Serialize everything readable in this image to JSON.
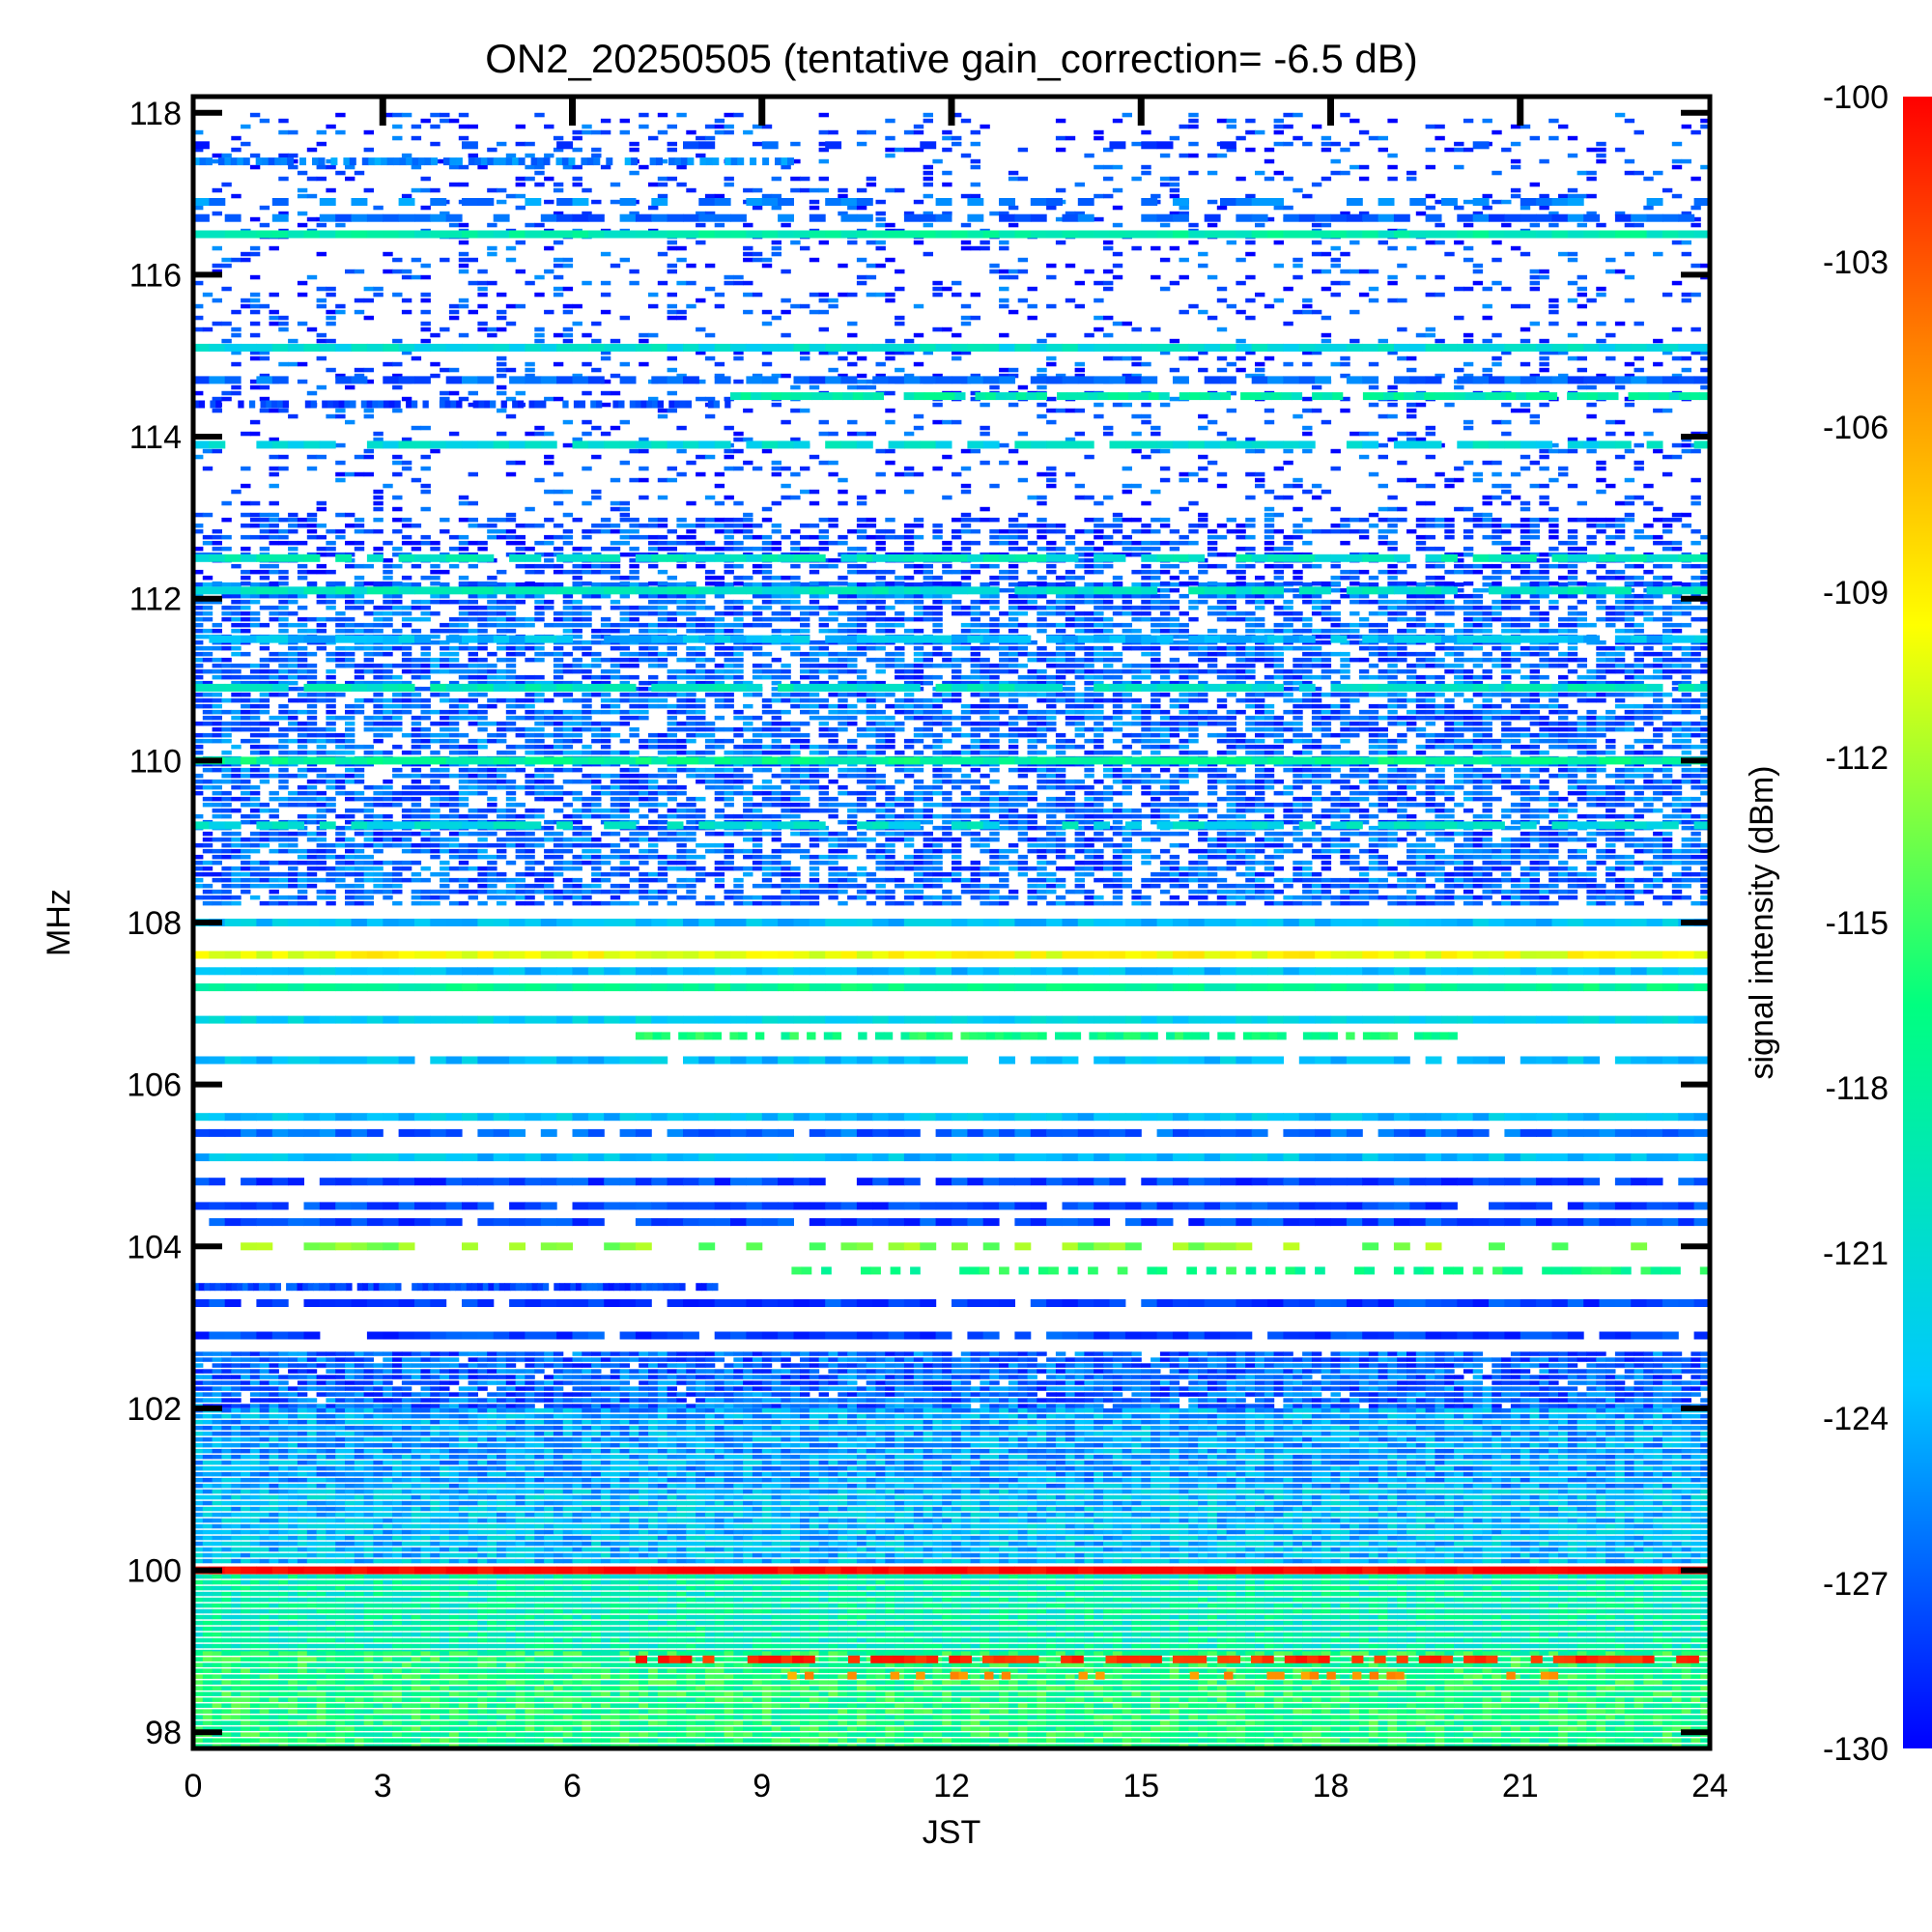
{
  "chart_data": {
    "type": "heatmap",
    "title": "ON2_20250505 (tentative gain_correction= -6.5 dB)",
    "xlabel": "JST",
    "ylabel": "MHz",
    "colorbar_label": "signal intensity (dBm)",
    "xlim": [
      0,
      24
    ],
    "ylim": [
      97.8,
      118.2
    ],
    "x_ticks": [
      "0",
      "3",
      "6",
      "9",
      "12",
      "15",
      "18",
      "21",
      "24"
    ],
    "y_ticks": [
      "98",
      "100",
      "102",
      "104",
      "106",
      "108",
      "110",
      "112",
      "114",
      "116",
      "118"
    ],
    "colorbar_range": [
      -130,
      -100
    ],
    "colorbar_ticks": [
      "-100",
      "-103",
      "-106",
      "-109",
      "-112",
      "-115",
      "-118",
      "-121",
      "-124",
      "-127",
      "-130"
    ],
    "colormap": [
      "#0000ff",
      "#00c8ff",
      "#00ff80",
      "#ffff00",
      "#ff8000",
      "#ff0000"
    ],
    "grid": false,
    "bands": [
      {
        "freq": 117.6,
        "level": -128,
        "density": 0.15
      },
      {
        "freq": 117.4,
        "level": -126,
        "density": 0.8,
        "t_start": 0,
        "t_end": 9.5
      },
      {
        "freq": 116.9,
        "level": -126,
        "density": 0.5
      },
      {
        "freq": 116.7,
        "level": -127,
        "density": 0.7
      },
      {
        "freq": 116.5,
        "level": -120,
        "density": 1.0
      },
      {
        "freq": 115.1,
        "level": -122,
        "density": 1.0
      },
      {
        "freq": 114.7,
        "level": -127,
        "density": 0.8
      },
      {
        "freq": 114.5,
        "level": -120,
        "density": 0.9,
        "t_start": 8.5,
        "t_end": 24
      },
      {
        "freq": 114.4,
        "level": -128,
        "density": 0.7,
        "t_start": 0,
        "t_end": 8.5
      },
      {
        "freq": 113.9,
        "level": -122,
        "density": 0.8
      },
      {
        "freq": 112.5,
        "level": -121,
        "density": 0.9
      },
      {
        "freq": 112.1,
        "level": -121,
        "density": 0.9
      },
      {
        "freq": 111.5,
        "level": -124,
        "density": 0.9
      },
      {
        "freq": 110.9,
        "level": -121,
        "density": 0.9
      },
      {
        "freq": 110.0,
        "level": -119,
        "density": 1.0
      },
      {
        "freq": 109.2,
        "level": -122,
        "density": 0.8
      },
      {
        "freq": 108.0,
        "level": -124,
        "density": 1.0
      },
      {
        "freq": 107.6,
        "level": -112,
        "density": 1.0
      },
      {
        "freq": 107.4,
        "level": -124,
        "density": 1.0
      },
      {
        "freq": 107.2,
        "level": -119,
        "density": 1.0
      },
      {
        "freq": 106.8,
        "level": -123,
        "density": 1.0
      },
      {
        "freq": 106.6,
        "level": -118,
        "density": 0.7,
        "t_start": 7,
        "t_end": 20
      },
      {
        "freq": 106.3,
        "level": -124,
        "density": 0.9
      },
      {
        "freq": 105.6,
        "level": -124,
        "density": 1.0
      },
      {
        "freq": 105.4,
        "level": -127,
        "density": 0.9
      },
      {
        "freq": 105.1,
        "level": -124,
        "density": 1.0
      },
      {
        "freq": 104.8,
        "level": -128,
        "density": 0.9
      },
      {
        "freq": 104.5,
        "level": -128,
        "density": 0.9
      },
      {
        "freq": 104.3,
        "level": -128,
        "density": 0.9
      },
      {
        "freq": 104.0,
        "level": -115,
        "density": 0.4
      },
      {
        "freq": 103.7,
        "level": -118,
        "density": 0.5,
        "t_start": 9,
        "t_end": 24
      },
      {
        "freq": 103.5,
        "level": -128,
        "density": 0.9,
        "t_start": 0,
        "t_end": 8.3
      },
      {
        "freq": 103.3,
        "level": -128,
        "density": 0.9
      },
      {
        "freq": 102.9,
        "level": -128,
        "density": 0.9
      },
      {
        "freq": 100.0,
        "level": -100,
        "density": 1.0
      },
      {
        "freq": 98.9,
        "level": -102,
        "density": 0.6,
        "t_start": 7,
        "t_end": 24
      },
      {
        "freq": 98.7,
        "level": -107,
        "density": 0.25,
        "t_start": 9,
        "t_end": 22
      }
    ],
    "fill_regions": [
      {
        "f_lo": 108.2,
        "f_hi": 112.2,
        "level": -127,
        "density": 0.72
      },
      {
        "f_lo": 112.2,
        "f_hi": 113.0,
        "level": -128,
        "density": 0.5
      },
      {
        "f_lo": 113.0,
        "f_hi": 118.0,
        "level": -128,
        "density": 0.17
      },
      {
        "f_lo": 102.0,
        "f_hi": 102.7,
        "level": -127,
        "density": 0.95
      },
      {
        "f_lo": 101.0,
        "f_hi": 102.0,
        "level": -125,
        "density": 1.0
      },
      {
        "f_lo": 100.1,
        "f_hi": 101.0,
        "level": -124,
        "density": 1.0
      },
      {
        "f_lo": 99.0,
        "f_hi": 99.95,
        "level": -120,
        "density": 1.0
      },
      {
        "f_lo": 97.8,
        "f_hi": 99.0,
        "level": -118,
        "density": 1.0
      }
    ]
  }
}
